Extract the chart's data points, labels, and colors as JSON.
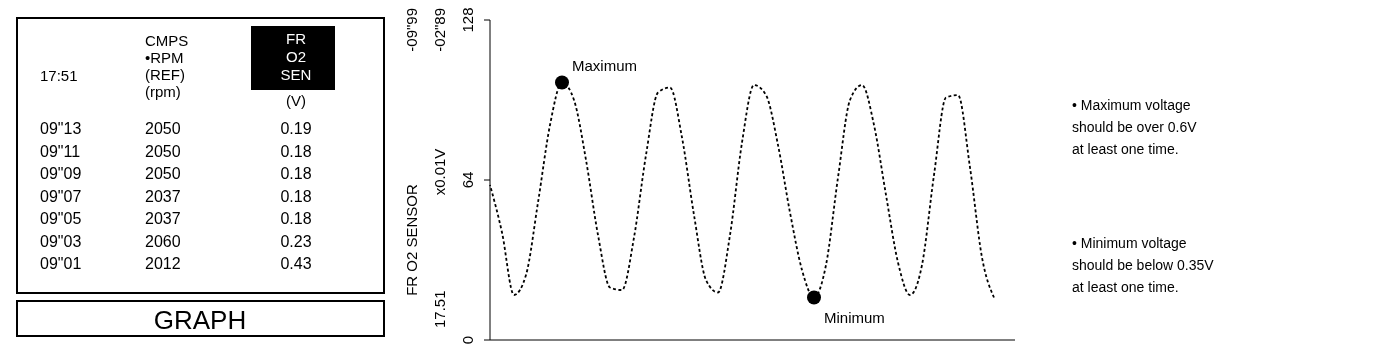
{
  "chart_data": [
    {
      "type": "other",
      "title": "GRAPH",
      "annotations": [
        "17:51",
        "CMPS\n•RPM\n(REF)\n(rpm)",
        "FR\nO2\nSEN\n(V)",
        "09\"13",
        "2050",
        "0.19",
        "09\"11",
        "2050",
        "0.18",
        "09\"09",
        "2050",
        "0.18",
        "09\"07",
        "2037",
        "0.18",
        "09\"05",
        "2037",
        "0.18",
        "09\"03",
        "2060",
        "0.23",
        "09\"01",
        "2012",
        "0.43"
      ]
    },
    {
      "type": "line",
      "ylabel": "FR O2 SENSOR\nx0.01V",
      "ylim": [
        0,
        128
      ],
      "yticks": [
        0,
        64,
        128
      ],
      "grid": false,
      "line_style": "dashed",
      "categories": [
        null,
        null,
        null,
        null,
        null,
        null,
        null,
        null,
        null,
        null,
        null,
        null,
        null,
        null,
        null,
        null,
        null,
        null,
        null,
        null,
        null,
        null,
        null,
        null,
        null,
        null,
        null,
        null,
        null,
        null,
        null,
        null,
        null,
        null,
        null,
        null,
        null,
        null,
        null,
        null,
        null,
        null,
        null
      ],
      "series": [
        {
          "color": "#000000",
          "values": [
            62,
            43,
            18,
            26,
            55,
            86,
            103,
            96,
            72,
            42,
            21,
            20,
            41,
            74,
            99,
            101,
            81,
            50,
            24,
            19,
            42,
            79,
            102,
            98,
            78,
            51,
            28,
            17,
            30,
            65,
            96,
            102,
            86,
            58,
            31,
            18,
            30,
            66,
            97,
            98,
            69,
            33,
            17
          ]
        },
        {
          "type": "scatter",
          "color": "#000000",
          "values": [
            null,
            null,
            null,
            null,
            null,
            null,
            103,
            null,
            null,
            null,
            null,
            null,
            null,
            null,
            null,
            null,
            null,
            null,
            null,
            null,
            null,
            null,
            null,
            null,
            null,
            null,
            null,
            17,
            null,
            null,
            null,
            null,
            null,
            null,
            null,
            null,
            null,
            null,
            null,
            null,
            null,
            null,
            null
          ]
        }
      ],
      "annotations": [
        "Maximum",
        "Minimum",
        "-09\"99",
        "-02\"89",
        "17.51",
        "• Maximum voltage\nshould be over 0.6V\nat least one time.",
        "• Minimum voltage\nshould be below 0.35V\nat least one time."
      ]
    }
  ]
}
